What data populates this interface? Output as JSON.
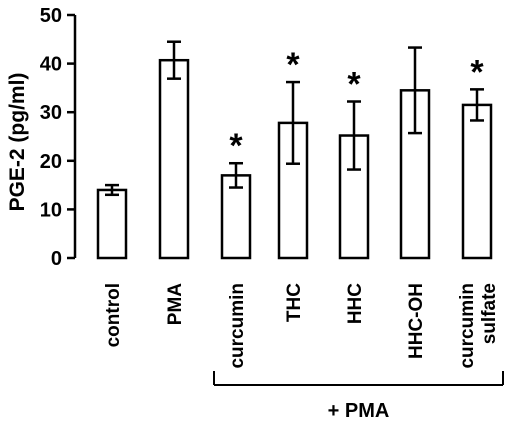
{
  "chart_data": {
    "type": "bar",
    "ylabel": "PGE-2 (pg/ml)",
    "ylim": [
      0,
      50
    ],
    "yticks": [
      0,
      10,
      20,
      30,
      40,
      50
    ],
    "grid": false,
    "categories": [
      "control",
      "PMA",
      "curcumin",
      "THC",
      "HHC",
      "HHC-OH",
      "curcumin sulfate"
    ],
    "category_lines": [
      [
        "control"
      ],
      [
        "PMA"
      ],
      [
        "curcumin"
      ],
      [
        "THC"
      ],
      [
        "HHC"
      ],
      [
        "HHC-OH"
      ],
      [
        "curcumin",
        "sulfate"
      ]
    ],
    "values": [
      14,
      40.7,
      17,
      27.8,
      25.2,
      34.5,
      31.5
    ],
    "error": [
      1,
      3.8,
      2.5,
      8.4,
      7,
      8.8,
      3.2
    ],
    "significant": [
      false,
      false,
      true,
      true,
      true,
      false,
      true
    ],
    "significance_marker": "*",
    "group_bracket": {
      "label": "+ PMA",
      "from_category": "curcumin",
      "to_category": "curcumin sulfate"
    },
    "colors": {
      "bar_fill": "#ffffff",
      "stroke": "#000000"
    }
  }
}
